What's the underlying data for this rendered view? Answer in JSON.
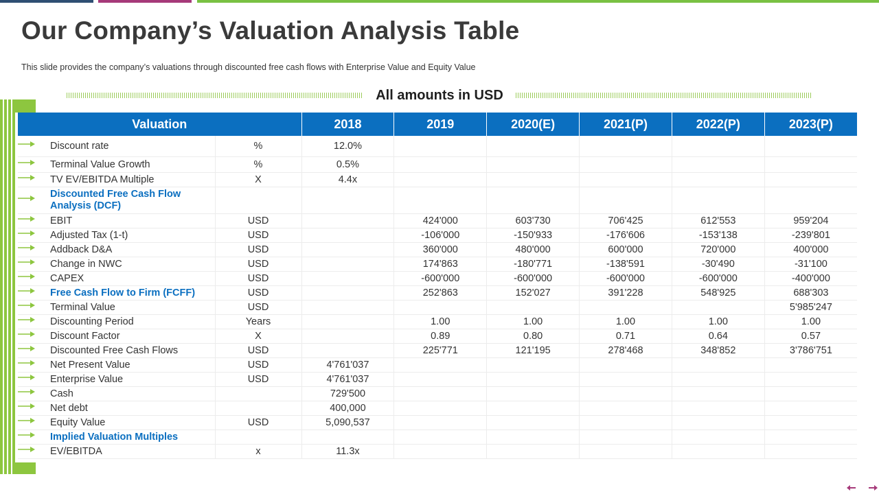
{
  "title": "Our Company’s Valuation Analysis Table",
  "subtitle": "This slide provides  the company’s valuations  through  discounted free  cash flows with Enterprise Value and Equity Value",
  "amounts_label": "All amounts in USD",
  "colors": {
    "header_blue": "#0b6fc0",
    "accent_green": "#8dc63f",
    "section_text": "#0b6fc0"
  },
  "icons": {
    "row_marker": "arrow-right-icon",
    "prev": "arrow-left-icon",
    "next": "arrow-right-icon"
  },
  "table": {
    "header": {
      "valuation": "Valuation",
      "years": [
        "2018",
        "2019",
        "2020(E)",
        "2021(P)",
        "2022(P)",
        "2023(P)"
      ]
    },
    "rows": [
      {
        "label": "Discount rate",
        "unit": "%",
        "values": [
          "12.0%",
          "",
          "",
          "",
          "",
          ""
        ]
      },
      {
        "label": "Terminal Value Growth",
        "unit": "%",
        "values": [
          "0.5%",
          "",
          "",
          "",
          "",
          ""
        ]
      },
      {
        "label": "TV EV/EBITDA Multiple",
        "unit": "X",
        "values": [
          "4.4x",
          "",
          "",
          "",
          "",
          ""
        ]
      },
      {
        "label": "Discounted Free Cash Flow Analysis  (DCF)",
        "unit": "",
        "values": [
          "",
          "",
          "",
          "",
          "",
          ""
        ],
        "section": true
      },
      {
        "label": "EBIT",
        "unit": "USD",
        "values": [
          "",
          "424'000",
          "603'730",
          "706'425",
          "612'553",
          "959'204"
        ]
      },
      {
        "label": "Adjusted Tax (1-t)",
        "unit": "USD",
        "values": [
          "",
          "-106'000",
          "-150'933",
          "-176'606",
          "-153'138",
          "-239'801"
        ]
      },
      {
        "label": "Addback D&A",
        "unit": "USD",
        "values": [
          "",
          "360'000",
          "480'000",
          "600'000",
          "720'000",
          "400'000"
        ]
      },
      {
        "label": "Change in NWC",
        "unit": "USD",
        "values": [
          "",
          "174'863",
          "-180'771",
          "-138'591",
          "-30'490",
          "-31'100"
        ]
      },
      {
        "label": "CAPEX",
        "unit": "USD",
        "values": [
          "",
          "-600'000",
          "-600'000",
          "-600'000",
          "-600'000",
          "-400'000"
        ]
      },
      {
        "label": "Free Cash Flow to Firm (FCFF)",
        "unit": "USD",
        "values": [
          "",
          "252'863",
          "152'027",
          "391'228",
          "548'925",
          "688'303"
        ],
        "section": true
      },
      {
        "label": "Terminal Value",
        "unit": "USD",
        "values": [
          "",
          "",
          "",
          "",
          "",
          "5'985'247"
        ]
      },
      {
        "label": "Discounting Period",
        "unit": "Years",
        "values": [
          "",
          "1.00",
          "1.00",
          "1.00",
          "1.00",
          "1.00"
        ]
      },
      {
        "label": "Discount Factor",
        "unit": "X",
        "values": [
          "",
          "0.89",
          "0.80",
          "0.71",
          "0.64",
          "0.57"
        ]
      },
      {
        "label": "Discounted Free Cash Flows",
        "unit": "USD",
        "values": [
          "",
          "225'771",
          "121'195",
          "278'468",
          "348'852",
          "3'786'751"
        ]
      },
      {
        "label": "Net Present Value",
        "unit": "USD",
        "values": [
          "4'761'037",
          "",
          "",
          "",
          "",
          ""
        ]
      },
      {
        "label": "Enterprise Value",
        "unit": "USD",
        "values": [
          "4'761'037",
          "",
          "",
          "",
          "",
          ""
        ]
      },
      {
        "label": "Cash",
        "unit": "",
        "values": [
          "729'500",
          "",
          "",
          "",
          "",
          ""
        ]
      },
      {
        "label": "Net debt",
        "unit": "",
        "values": [
          "400,000",
          "",
          "",
          "",
          "",
          ""
        ]
      },
      {
        "label": "Equity Value",
        "unit": "USD",
        "values": [
          "5,090,537",
          "",
          "",
          "",
          "",
          ""
        ]
      },
      {
        "label": "Implied Valuation Multiples",
        "unit": "",
        "values": [
          "",
          "",
          "",
          "",
          "",
          ""
        ],
        "section": true
      },
      {
        "label": "EV/EBITDA",
        "unit": "x",
        "values": [
          "11.3x",
          "",
          "",
          "",
          "",
          ""
        ]
      }
    ]
  }
}
